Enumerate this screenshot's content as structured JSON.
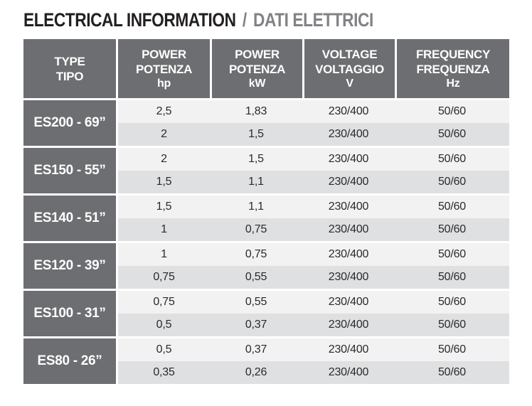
{
  "title": {
    "primary": "ELECTRICAL INFORMATION",
    "separator": "/",
    "secondary": "DATI ELETTRICI",
    "primary_color": "#231f20",
    "secondary_color": "#808285"
  },
  "colors": {
    "header_bg": "#6d6e71",
    "header_text": "#ffffff",
    "row_light_bg": "#f2f2f3",
    "row_dark_bg": "#dfe0e2",
    "data_text": "#2b2a29",
    "page_bg": "#ffffff"
  },
  "table": {
    "columns": [
      {
        "line1": "TYPE",
        "line2": "TIPO",
        "unit": ""
      },
      {
        "line1": "POWER",
        "line2": "POTENZA",
        "unit": "hp"
      },
      {
        "line1": "POWER",
        "line2": "POTENZA",
        "unit": "kW"
      },
      {
        "line1": "VOLTAGE",
        "line2": "VOLTAGGIO",
        "unit": "V"
      },
      {
        "line1": "FREQUENCY",
        "line2": "FREQUENZA",
        "unit": "Hz"
      }
    ],
    "groups": [
      {
        "type": "ES200 - 69”",
        "rows": [
          [
            "2,5",
            "1,83",
            "230/400",
            "50/60"
          ],
          [
            "2",
            "1,5",
            "230/400",
            "50/60"
          ]
        ]
      },
      {
        "type": "ES150 - 55”",
        "rows": [
          [
            "2",
            "1,5",
            "230/400",
            "50/60"
          ],
          [
            "1,5",
            "1,1",
            "230/400",
            "50/60"
          ]
        ]
      },
      {
        "type": "ES140 - 51”",
        "rows": [
          [
            "1,5",
            "1,1",
            "230/400",
            "50/60"
          ],
          [
            "1",
            "0,75",
            "230/400",
            "50/60"
          ]
        ]
      },
      {
        "type": "ES120 - 39”",
        "rows": [
          [
            "1",
            "0,75",
            "230/400",
            "50/60"
          ],
          [
            "0,75",
            "0,55",
            "230/400",
            "50/60"
          ]
        ]
      },
      {
        "type": "ES100 - 31”",
        "rows": [
          [
            "0,75",
            "0,55",
            "230/400",
            "50/60"
          ],
          [
            "0,5",
            "0,37",
            "230/400",
            "50/60"
          ]
        ]
      },
      {
        "type": "ES80 - 26”",
        "rows": [
          [
            "0,5",
            "0,37",
            "230/400",
            "50/60"
          ],
          [
            "0,35",
            "0,26",
            "230/400",
            "50/60"
          ]
        ]
      }
    ]
  }
}
